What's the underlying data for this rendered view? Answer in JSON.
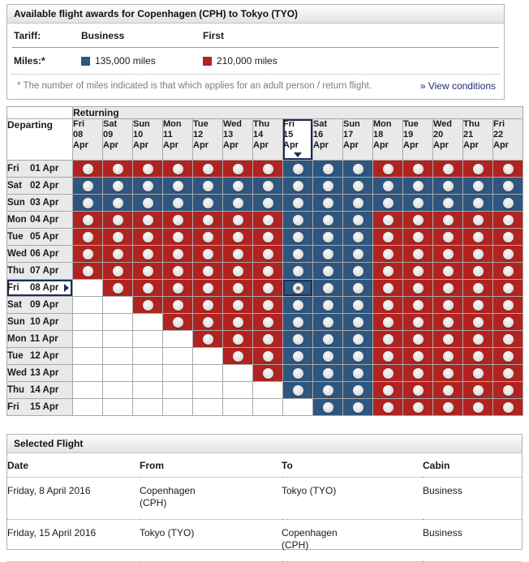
{
  "availability": {
    "title": "Available flight awards for Copenhagen (CPH) to Tokyo (TYO)",
    "tariff_label": "Tariff:",
    "miles_label": "Miles:*",
    "cabins": [
      {
        "name": "Business",
        "miles": "135,000 miles",
        "color": "#2e567e"
      },
      {
        "name": "First",
        "miles": "210,000 miles",
        "color": "#b02320"
      }
    ],
    "footnote": "* The number of miles indicated is that which applies for an adult person / return flight.",
    "view_conditions_label": "» View conditions"
  },
  "calendar": {
    "returning_label": "Returning",
    "departing_label": "Departing",
    "selected_column_index": 7,
    "selected_row_index": 7,
    "columns": [
      {
        "day": "Fri",
        "date": "08",
        "month": "Apr"
      },
      {
        "day": "Sat",
        "date": "09",
        "month": "Apr"
      },
      {
        "day": "Sun",
        "date": "10",
        "month": "Apr"
      },
      {
        "day": "Mon",
        "date": "11",
        "month": "Apr"
      },
      {
        "day": "Tue",
        "date": "12",
        "month": "Apr"
      },
      {
        "day": "Wed",
        "date": "13",
        "month": "Apr"
      },
      {
        "day": "Thu",
        "date": "14",
        "month": "Apr"
      },
      {
        "day": "Fri",
        "date": "15",
        "month": "Apr"
      },
      {
        "day": "Sat",
        "date": "16",
        "month": "Apr"
      },
      {
        "day": "Sun",
        "date": "17",
        "month": "Apr"
      },
      {
        "day": "Mon",
        "date": "18",
        "month": "Apr"
      },
      {
        "day": "Tue",
        "date": "19",
        "month": "Apr"
      },
      {
        "day": "Wed",
        "date": "20",
        "month": "Apr"
      },
      {
        "day": "Thu",
        "date": "21",
        "month": "Apr"
      },
      {
        "day": "Fri",
        "date": "22",
        "month": "Apr"
      }
    ],
    "rows": [
      {
        "day": "Fri",
        "date": "01 Apr"
      },
      {
        "day": "Sat",
        "date": "02 Apr"
      },
      {
        "day": "Sun",
        "date": "03 Apr"
      },
      {
        "day": "Mon",
        "date": "04 Apr"
      },
      {
        "day": "Tue",
        "date": "05 Apr"
      },
      {
        "day": "Wed",
        "date": "06 Apr"
      },
      {
        "day": "Thu",
        "date": "07 Apr"
      },
      {
        "day": "Fri",
        "date": "08 Apr"
      },
      {
        "day": "Sat",
        "date": "09 Apr"
      },
      {
        "day": "Sun",
        "date": "10 Apr"
      },
      {
        "day": "Mon",
        "date": "11 Apr"
      },
      {
        "day": "Tue",
        "date": "12 Apr"
      },
      {
        "day": "Wed",
        "date": "13 Apr"
      },
      {
        "day": "Thu",
        "date": "14 Apr"
      },
      {
        "day": "Fri",
        "date": "15 Apr"
      }
    ],
    "cell_legend": {
      "F": "First 210,000 miles",
      "B": "Business 135,000 miles",
      "E": "not available",
      "S": "selected Business"
    },
    "matrix": [
      "FFFFFFFBBBFFFFF",
      "BBBBBBBBBBBBBBB",
      "BBBBBBBBBBBBBBB",
      "FFFFFFFBBBFFFFF",
      "FFFFFFFBBBFFFFF",
      "FFFFFFFBBBFFFFF",
      "FFFFFFFBBBFFFFF",
      "EFFFFFFSBBFFFFF",
      "EEFFFFFBBBFFFFF",
      "EEEFFFFBBBFFFFF",
      "EEEEFFFBBBFFFFF",
      "EEEEEFFBBBFFFFF",
      "EEEEEEFBBBFFFFF",
      "EEEEEEEBBBFFFFF",
      "EEEEEEEEBBFFFFF"
    ],
    "colors": {
      "first": "#b02320",
      "business": "#2e567e",
      "selection_border": "#1b2d5e",
      "grid_line": "#a8a8a8",
      "header_bg": "#e9e9e9"
    }
  },
  "selected_flight": {
    "title": "Selected Flight",
    "headers": [
      "Date",
      "From",
      "To",
      "Cabin"
    ],
    "rows": [
      {
        "date": "Friday, 8 April 2016",
        "from": "Copenhagen (CPH)",
        "to": "Tokyo (TYO)",
        "cabin": "Business"
      },
      {
        "date": "Friday, 15 April 2016",
        "from": "Tokyo (TYO)",
        "to": "Copenhagen (CPH)",
        "cabin": "Business"
      }
    ]
  }
}
